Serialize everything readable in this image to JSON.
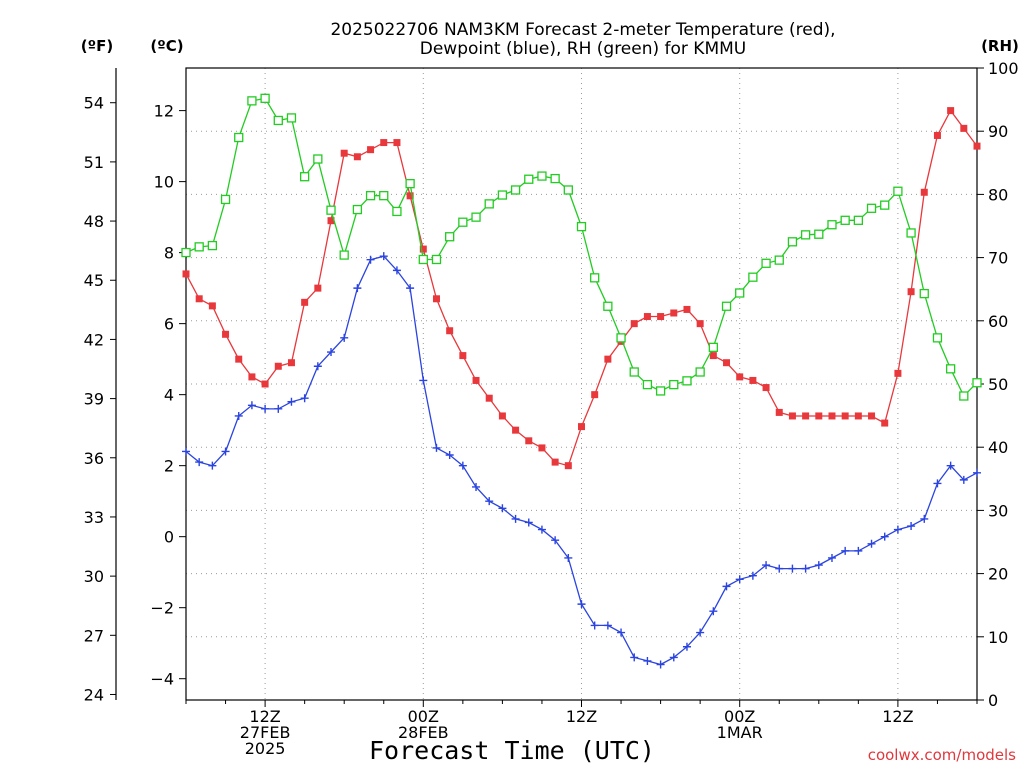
{
  "chart_data": {
    "type": "line",
    "title_line1": "2025022706 NAM3KM Forecast 2-meter Temperature (red),",
    "title_line2": "Dewpoint (blue), RH (green) for KMMU",
    "xlabel": "Forecast Time (UTC)",
    "credit": "coolwx.com/models",
    "x_hours": [
      6,
      7,
      8,
      9,
      10,
      11,
      12,
      13,
      14,
      15,
      16,
      17,
      18,
      19,
      20,
      21,
      22,
      23,
      24,
      25,
      26,
      27,
      28,
      29,
      30,
      31,
      32,
      33,
      34,
      35,
      36,
      37,
      38,
      39,
      40,
      41,
      42,
      43,
      44,
      45,
      46,
      47,
      48,
      49,
      50,
      51,
      52,
      53,
      54,
      55,
      56,
      57,
      58,
      59,
      60,
      61,
      62,
      63,
      64,
      65,
      66
    ],
    "x_ticks": [
      {
        "hour": 12,
        "lines": [
          "12Z",
          "27FEB",
          "2025"
        ]
      },
      {
        "hour": 24,
        "lines": [
          "00Z",
          "28FEB"
        ]
      },
      {
        "hour": 36,
        "lines": [
          "12Z"
        ]
      },
      {
        "hour": 48,
        "lines": [
          "00Z",
          "1MAR"
        ]
      },
      {
        "hour": 60,
        "lines": [
          "12Z"
        ]
      }
    ],
    "xlim": [
      6,
      66
    ],
    "left_c_axis": {
      "unit": "(ºC)",
      "ylim": [
        -4.6,
        13.2
      ],
      "ticks": [
        12,
        10,
        8,
        6,
        4,
        2,
        0,
        -2,
        -4
      ]
    },
    "left_f_axis": {
      "unit": "(ºF)",
      "ticks": [
        54,
        51,
        48,
        45,
        42,
        39,
        36,
        33,
        30,
        27,
        24
      ]
    },
    "right_rh_axis": {
      "unit": "(RH)",
      "ylim": [
        0,
        100
      ],
      "ticks": [
        100,
        90,
        80,
        70,
        60,
        50,
        40,
        30,
        20,
        10,
        0
      ]
    },
    "grid": true,
    "series": [
      {
        "name": "Temperature (red)",
        "axis": "c",
        "color": "#e8383c",
        "marker": "filled-square",
        "values": [
          7.4,
          6.7,
          6.5,
          5.7,
          5.0,
          4.5,
          4.3,
          4.8,
          4.9,
          6.6,
          7.0,
          8.9,
          10.8,
          10.7,
          10.9,
          11.1,
          11.1,
          9.6,
          8.1,
          6.7,
          5.8,
          5.1,
          4.4,
          3.9,
          3.4,
          3.0,
          2.7,
          2.5,
          2.1,
          2.0,
          3.1,
          4.0,
          5.0,
          5.5,
          6.0,
          6.2,
          6.2,
          6.3,
          6.4,
          6.0,
          5.1,
          4.9,
          4.5,
          4.4,
          4.2,
          3.5,
          3.4,
          3.4,
          3.4,
          3.4,
          3.4,
          3.4,
          3.4,
          3.2,
          4.6,
          6.9,
          9.7,
          11.3,
          12.0,
          11.5,
          11.0
        ]
      },
      {
        "name": "Dewpoint (blue)",
        "axis": "c",
        "color": "#2b44e0",
        "marker": "plus",
        "values": [
          2.4,
          2.1,
          2.0,
          2.4,
          3.4,
          3.7,
          3.6,
          3.6,
          3.8,
          3.9,
          4.8,
          5.2,
          5.6,
          7.0,
          7.8,
          7.9,
          7.5,
          7.0,
          4.4,
          2.5,
          2.3,
          2.0,
          1.4,
          1.0,
          0.8,
          0.5,
          0.4,
          0.2,
          -0.1,
          -0.6,
          -1.9,
          -2.5,
          -2.5,
          -2.7,
          -3.4,
          -3.5,
          -3.6,
          -3.4,
          -3.1,
          -2.7,
          -2.1,
          -1.4,
          -1.2,
          -1.1,
          -0.8,
          -0.9,
          -0.9,
          -0.9,
          -0.8,
          -0.6,
          -0.4,
          -0.4,
          -0.2,
          0.0,
          0.2,
          0.3,
          0.5,
          1.5,
          2.0,
          1.6,
          1.8
        ]
      },
      {
        "name": "RH (green)",
        "axis": "rh",
        "color": "#22cc22",
        "marker": "open-square",
        "values": [
          70.8,
          71.7,
          71.9,
          79.2,
          89.0,
          94.8,
          95.2,
          91.7,
          92.1,
          82.8,
          85.6,
          77.5,
          70.4,
          77.6,
          79.8,
          79.8,
          77.3,
          81.7,
          69.7,
          69.7,
          73.3,
          75.6,
          76.4,
          78.5,
          79.9,
          80.7,
          82.4,
          82.9,
          82.5,
          80.7,
          74.9,
          66.8,
          62.3,
          57.3,
          51.9,
          49.9,
          48.9,
          49.9,
          50.5,
          51.9,
          55.8,
          62.3,
          64.4,
          66.9,
          69.1,
          69.6,
          72.5,
          73.6,
          73.7,
          75.2,
          75.9,
          75.9,
          77.8,
          78.3,
          80.5,
          73.9,
          64.3,
          57.3,
          52.4,
          48.1,
          50.2
        ]
      }
    ]
  }
}
